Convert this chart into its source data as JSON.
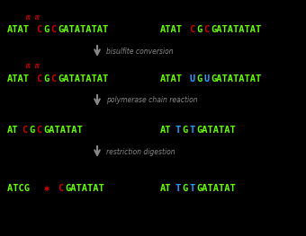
{
  "background_color": "#000000",
  "arrow_color": "#888888",
  "label_color": "#888888",
  "green": "#66ff00",
  "red": "#cc0000",
  "blue": "#3399ff",
  "row_labels": [
    "bisulfite conversion",
    "polymerase chain reaction",
    "restriction digestion"
  ],
  "sequences": {
    "row0_left": [
      {
        "t": "ATAT",
        "c": "#66ff00"
      },
      {
        "t": "C",
        "c": "#cc0000"
      },
      {
        "t": "G",
        "c": "#66ff00"
      },
      {
        "t": "C",
        "c": "#cc0000"
      },
      {
        "t": "GATATATAT",
        "c": "#66ff00"
      }
    ],
    "row0_right": [
      {
        "t": "ATAT",
        "c": "#66ff00"
      },
      {
        "t": "C",
        "c": "#cc0000"
      },
      {
        "t": "G",
        "c": "#66ff00"
      },
      {
        "t": "C",
        "c": "#cc0000"
      },
      {
        "t": "GATATATAT",
        "c": "#66ff00"
      }
    ],
    "row1_left": [
      {
        "t": "ATAT",
        "c": "#66ff00"
      },
      {
        "t": "C",
        "c": "#cc0000"
      },
      {
        "t": "G",
        "c": "#66ff00"
      },
      {
        "t": "C",
        "c": "#cc0000"
      },
      {
        "t": "GATATATAT",
        "c": "#66ff00"
      }
    ],
    "row1_right": [
      {
        "t": "ATAT",
        "c": "#66ff00"
      },
      {
        "t": "U",
        "c": "#3399ff"
      },
      {
        "t": "G",
        "c": "#66ff00"
      },
      {
        "t": "U",
        "c": "#3399ff"
      },
      {
        "t": "GATATATAT",
        "c": "#66ff00"
      }
    ],
    "row2_left": [
      {
        "t": "AT",
        "c": "#66ff00"
      },
      {
        "t": "C",
        "c": "#cc0000"
      },
      {
        "t": "G",
        "c": "#66ff00"
      },
      {
        "t": "C",
        "c": "#cc0000"
      },
      {
        "t": "GATATAT",
        "c": "#66ff00"
      }
    ],
    "row2_right": [
      {
        "t": "AT",
        "c": "#66ff00"
      },
      {
        "t": "T",
        "c": "#3399ff"
      },
      {
        "t": "G",
        "c": "#66ff00"
      },
      {
        "t": "T",
        "c": "#3399ff"
      },
      {
        "t": "GATATAT",
        "c": "#66ff00"
      }
    ],
    "row3_left": [
      {
        "t": "ATCG ",
        "c": "#66ff00"
      },
      {
        "t": "✱",
        "c": "#cc0000"
      },
      {
        "t": " ",
        "c": "#66ff00"
      },
      {
        "t": "C",
        "c": "#cc0000"
      },
      {
        "t": "GATATAT",
        "c": "#66ff00"
      }
    ],
    "row3_right": [
      {
        "t": "AT",
        "c": "#66ff00"
      },
      {
        "t": "T",
        "c": "#3399ff"
      },
      {
        "t": "G",
        "c": "#66ff00"
      },
      {
        "t": "T",
        "c": "#3399ff"
      },
      {
        "t": "GATATAT",
        "c": "#66ff00"
      }
    ]
  }
}
